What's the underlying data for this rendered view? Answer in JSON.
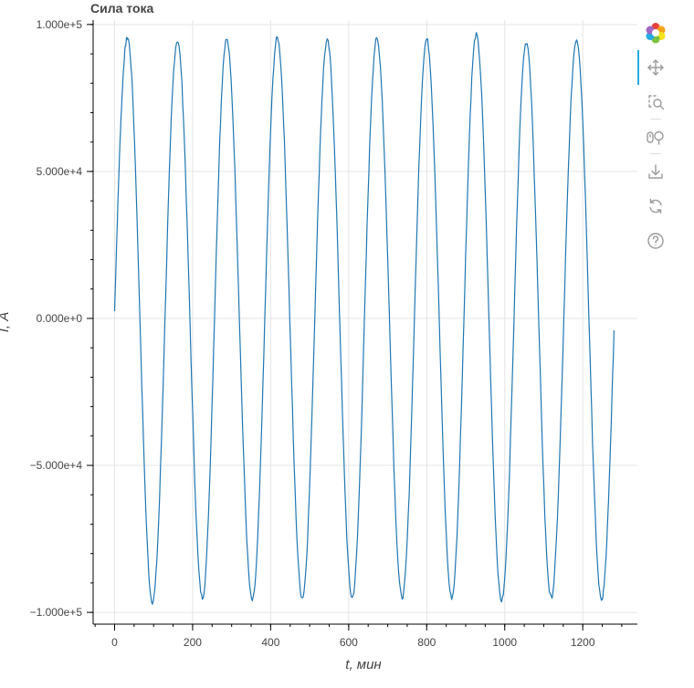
{
  "chart_data": {
    "type": "line",
    "title": "Сила тока",
    "xlabel": "t, мин",
    "ylabel": "I, А",
    "xlim": [
      -55,
      1340
    ],
    "ylim": [
      -104000,
      101500
    ],
    "x_ticks": [
      0,
      200,
      400,
      600,
      800,
      1000,
      1200
    ],
    "x_tick_labels": [
      "0",
      "200",
      "400",
      "600",
      "800",
      "1000",
      "1200"
    ],
    "x_minor_step": 50,
    "y_ticks": [
      100000,
      50000,
      0,
      -50000,
      -100000
    ],
    "y_tick_labels": [
      "1.000e+5",
      "5.000e+4",
      "0.000e+0",
      "−5.000e+4",
      "−1.000e+5"
    ],
    "y_minor_step": 10000,
    "grid": true,
    "series": [
      {
        "color": "#1f77b4",
        "start": [
          0,
          2500
        ],
        "end": [
          1280,
          -4500
        ],
        "peaks": [
          [
            33,
            95500
          ],
          [
            161,
            94500
          ],
          [
            287,
            95000
          ],
          [
            417,
            95500
          ],
          [
            545,
            94500
          ],
          [
            672,
            95000
          ],
          [
            800,
            95000
          ],
          [
            927,
            96500
          ],
          [
            1055,
            94000
          ],
          [
            1184,
            95000
          ]
        ],
        "troughs": [
          [
            97,
            -96500
          ],
          [
            225,
            -95000
          ],
          [
            353,
            -96000
          ],
          [
            481,
            -95000
          ],
          [
            609,
            -95000
          ],
          [
            737,
            -95000
          ],
          [
            864,
            -95000
          ],
          [
            992,
            -96000
          ],
          [
            1119,
            -95000
          ],
          [
            1248,
            -95500
          ]
        ]
      }
    ]
  },
  "toolbar": {
    "tools": [
      "bokeh-logo-icon",
      "pan-icon",
      "box-zoom-icon",
      "wheel-zoom-icon",
      "save-icon",
      "reset-icon",
      "help-icon"
    ],
    "active_color": "#26aae1"
  }
}
